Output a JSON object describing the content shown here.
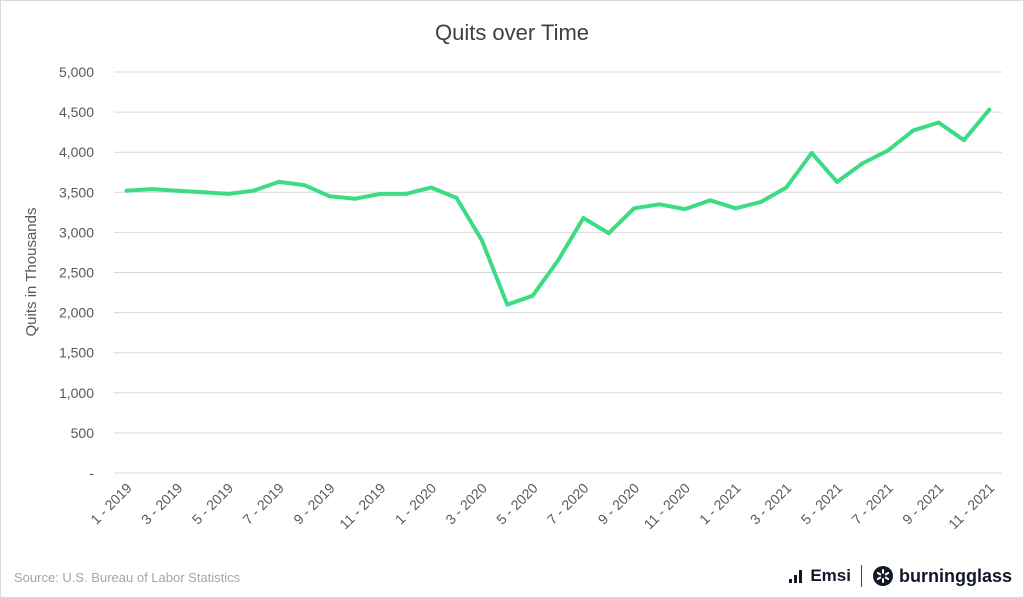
{
  "chart_data": {
    "type": "line",
    "title": "Quits over Time",
    "ylabel": "Quits in Thousands",
    "xlabel": "",
    "ylim": [
      0,
      5000
    ],
    "yticks": [
      0,
      500,
      1000,
      1500,
      2000,
      2500,
      3000,
      3500,
      4000,
      4500,
      5000
    ],
    "ytick_labels": [
      "-",
      "500",
      "1,000",
      "1,500",
      "2,000",
      "2,500",
      "3,000",
      "3,500",
      "4,000",
      "4,500",
      "5,000"
    ],
    "grid": true,
    "legend": "none",
    "line_color": "#3ddc84",
    "x": [
      "1 - 2019",
      "2 - 2019",
      "3 - 2019",
      "4 - 2019",
      "5 - 2019",
      "6 - 2019",
      "7 - 2019",
      "8 - 2019",
      "9 - 2019",
      "10 - 2019",
      "11 - 2019",
      "12 - 2019",
      "1 - 2020",
      "2 - 2020",
      "3 - 2020",
      "4 - 2020",
      "5 - 2020",
      "6 - 2020",
      "7 - 2020",
      "8 - 2020",
      "9 - 2020",
      "10 - 2020",
      "11 - 2020",
      "12 - 2020",
      "1 - 2021",
      "2 - 2021",
      "3 - 2021",
      "4 - 2021",
      "5 - 2021",
      "6 - 2021",
      "7 - 2021",
      "8 - 2021",
      "9 - 2021",
      "10 - 2021",
      "11 - 2021"
    ],
    "x_tick_labels": [
      "1 - 2019",
      "",
      "3 - 2019",
      "",
      "5 - 2019",
      "",
      "7 - 2019",
      "",
      "9 - 2019",
      "",
      "11 - 2019",
      "",
      "1 - 2020",
      "",
      "3 - 2020",
      "",
      "5 - 2020",
      "",
      "7 - 2020",
      "",
      "9 - 2020",
      "",
      "11 - 2020",
      "",
      "1 - 2021",
      "",
      "3 - 2021",
      "",
      "5 - 2021",
      "",
      "7 - 2021",
      "",
      "9 - 2021",
      "",
      "11 - 2021"
    ],
    "series": [
      {
        "values": [
          3520,
          3540,
          3520,
          3500,
          3480,
          3520,
          3630,
          3590,
          3450,
          3420,
          3480,
          3480,
          3560,
          3430,
          2900,
          2100,
          2210,
          2650,
          3180,
          2990,
          3300,
          3350,
          3290,
          3400,
          3300,
          3380,
          3560,
          3990,
          3630,
          3860,
          4020,
          4270,
          4370,
          4150,
          4530
        ]
      }
    ]
  },
  "footer": {
    "source": "Source:  U.S. Bureau of Labor Statistics",
    "logo_emsi": "Emsi",
    "logo_burningglass": "burningglass"
  }
}
